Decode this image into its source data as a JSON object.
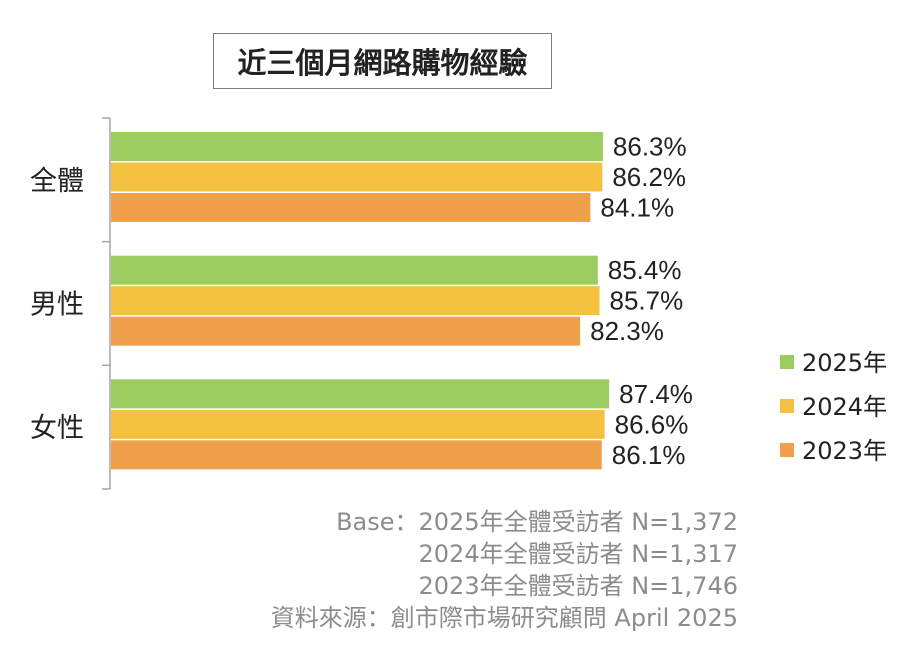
{
  "chart_data": {
    "type": "bar",
    "orientation": "horizontal",
    "title": "近三個月網路購物經驗",
    "categories": [
      "全體",
      "男性",
      "女性"
    ],
    "series": [
      {
        "name": "2025年",
        "color": "#9ccb5e",
        "values": [
          86.3,
          85.4,
          87.4
        ],
        "labels": [
          "86.3%",
          "85.4%",
          "87.4%"
        ]
      },
      {
        "name": "2024年",
        "color": "#f5c141",
        "values": [
          86.2,
          85.7,
          86.6
        ],
        "labels": [
          "86.2%",
          "85.7%",
          "86.6%"
        ]
      },
      {
        "name": "2023年",
        "color": "#f0a04b",
        "values": [
          84.1,
          82.3,
          86.1
        ],
        "labels": [
          "84.1%",
          "82.3%",
          "86.1%"
        ]
      }
    ],
    "xlim": [
      0,
      100
    ],
    "grid": false,
    "legend_position": "right"
  },
  "footnotes": [
    "Base：2025年全體受訪者 N=1,372",
    "2024年全體受訪者 N=1,317",
    "2023年全體受訪者 N=1,746",
    "資料來源：創市際市場研究顧問 April 2025"
  ]
}
